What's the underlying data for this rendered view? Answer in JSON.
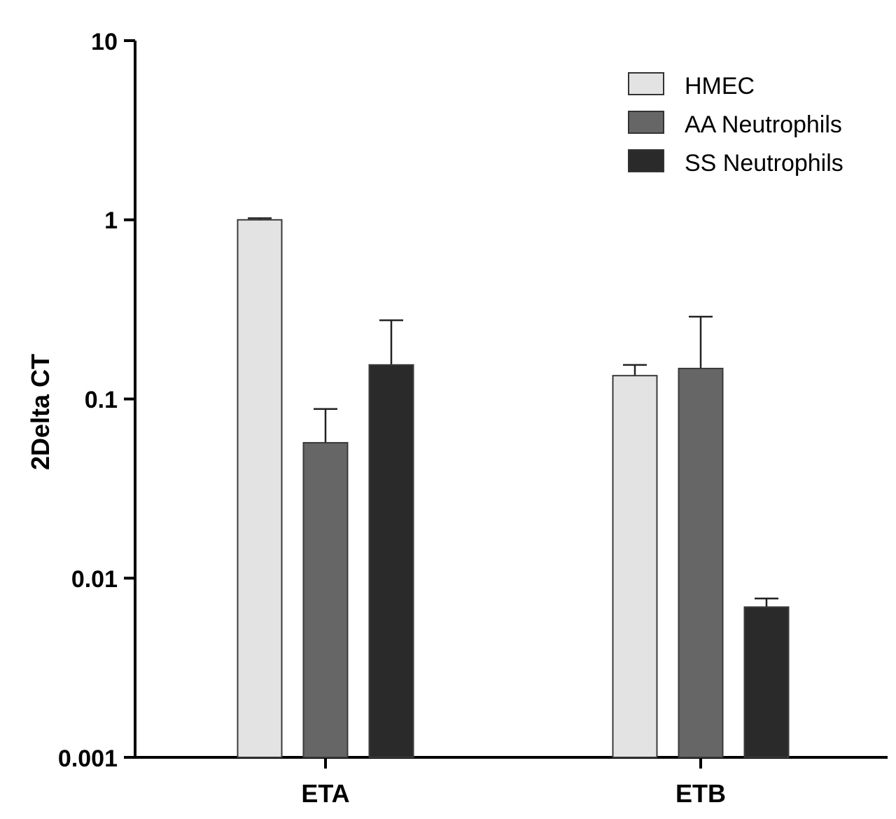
{
  "chart_data": {
    "type": "bar",
    "title": "",
    "xlabel": "",
    "ylabel": "2Delta CT",
    "yscale": "log",
    "ylim": [
      0.001,
      10
    ],
    "yticks": [
      0.001,
      0.01,
      0.1,
      1,
      10
    ],
    "ytick_labels": [
      "0.001",
      "0.01",
      "0.1",
      "1",
      "10"
    ],
    "categories": [
      "ETA",
      "ETB"
    ],
    "series": [
      {
        "name": "HMEC",
        "color": "#e3e3e3",
        "values": [
          1.0,
          0.135
        ],
        "errors": [
          0.02,
          0.02
        ]
      },
      {
        "name": "AA Neutrophils",
        "color": "#666666",
        "values": [
          0.057,
          0.148
        ],
        "errors": [
          0.031,
          0.14
        ]
      },
      {
        "name": "SS Neutrophils",
        "color": "#2a2a2a",
        "values": [
          0.155,
          0.0069
        ],
        "errors": [
          0.12,
          0.0008
        ]
      }
    ],
    "legend_position": "top-right",
    "grid": false
  }
}
